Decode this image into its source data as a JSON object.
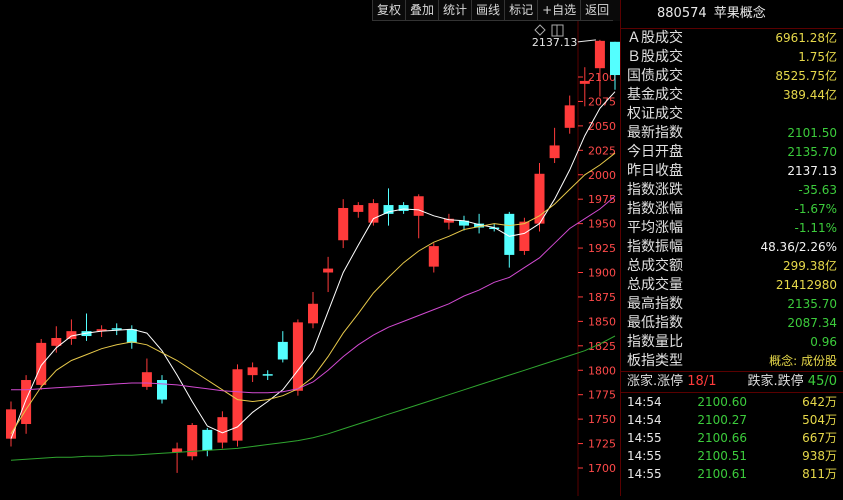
{
  "toolbar": {
    "buttons": [
      "复权",
      "叠加",
      "统计",
      "画线",
      "标记",
      "+自选",
      "返回"
    ]
  },
  "panel": {
    "code": "880574",
    "name": "苹果概念",
    "stats": [
      {
        "label": "Ａ股成交",
        "value": "6961.28亿",
        "color": "yellow"
      },
      {
        "label": "Ｂ股成交",
        "value": "1.75亿",
        "color": "yellow"
      },
      {
        "label": "国债成交",
        "value": "8525.75亿",
        "color": "yellow"
      },
      {
        "label": "基金成交",
        "value": "389.44亿",
        "color": "yellow"
      },
      {
        "label": "权证成交",
        "value": "",
        "color": "yellow"
      },
      {
        "label": "最新指数",
        "value": "2101.50",
        "color": "green"
      },
      {
        "label": "今日开盘",
        "value": "2135.70",
        "color": "green"
      },
      {
        "label": "昨日收盘",
        "value": "2137.13",
        "color": "white"
      },
      {
        "label": "指数涨跌",
        "value": "-35.63",
        "color": "green"
      },
      {
        "label": "指数涨幅",
        "value": "-1.67%",
        "color": "green"
      },
      {
        "label": "平均涨幅",
        "value": "-1.11%",
        "color": "green"
      },
      {
        "label": "指数振幅",
        "value": "48.36/2.26%",
        "color": "white"
      },
      {
        "label": "总成交额",
        "value": "299.38亿",
        "color": "yellow"
      },
      {
        "label": "总成交量",
        "value": "21412980",
        "color": "yellow"
      },
      {
        "label": "最高指数",
        "value": "2135.70",
        "color": "green"
      },
      {
        "label": "最低指数",
        "value": "2087.34",
        "color": "green"
      },
      {
        "label": "指数量比",
        "value": "0.96",
        "color": "green"
      },
      {
        "label": "板指类型",
        "value": "概念: 成份股",
        "color": "yellow"
      }
    ],
    "updown": {
      "up_label": "涨家.涨停",
      "up_value": "18/1",
      "down_label": "跌家.跌停",
      "down_value": "45/0"
    },
    "ticks": [
      {
        "time": "14:54",
        "price": "2100.60",
        "vol": "642万"
      },
      {
        "time": "14:54",
        "price": "2100.27",
        "vol": "504万"
      },
      {
        "time": "14:55",
        "price": "2100.66",
        "vol": "667万"
      },
      {
        "time": "14:55",
        "price": "2100.51",
        "vol": "938万"
      },
      {
        "time": "14:55",
        "price": "2100.61",
        "vol": "811万"
      }
    ]
  },
  "chart_data": {
    "type": "candlestick",
    "y_ticks": [
      1700,
      1725,
      1750,
      1775,
      1800,
      1825,
      1850,
      1875,
      1900,
      1925,
      1950,
      1975,
      2000,
      2025,
      2050,
      2075,
      2100
    ],
    "annotation": "2137.13",
    "candles": [
      {
        "o": 1730,
        "c": 1760,
        "h": 1768,
        "l": 1722
      },
      {
        "o": 1745,
        "c": 1790,
        "h": 1795,
        "l": 1735
      },
      {
        "o": 1785,
        "c": 1828,
        "h": 1832,
        "l": 1780
      },
      {
        "o": 1825,
        "c": 1833,
        "h": 1845,
        "l": 1818
      },
      {
        "o": 1832,
        "c": 1840,
        "h": 1852,
        "l": 1826
      },
      {
        "o": 1840,
        "c": 1835,
        "h": 1858,
        "l": 1830
      },
      {
        "o": 1840,
        "c": 1842,
        "h": 1846,
        "l": 1834
      },
      {
        "o": 1843,
        "c": 1842,
        "h": 1848,
        "l": 1836
      },
      {
        "o": 1842,
        "c": 1828,
        "h": 1846,
        "l": 1822
      },
      {
        "o": 1783,
        "c": 1798,
        "h": 1812,
        "l": 1780
      },
      {
        "o": 1790,
        "c": 1770,
        "h": 1795,
        "l": 1766
      },
      {
        "o": 1716,
        "c": 1720,
        "h": 1726,
        "l": 1695
      },
      {
        "o": 1712,
        "c": 1744,
        "h": 1746,
        "l": 1708
      },
      {
        "o": 1739,
        "c": 1718,
        "h": 1741,
        "l": 1712
      },
      {
        "o": 1726,
        "c": 1752,
        "h": 1758,
        "l": 1720
      },
      {
        "o": 1728,
        "c": 1801,
        "h": 1806,
        "l": 1722
      },
      {
        "o": 1795,
        "c": 1803,
        "h": 1808,
        "l": 1788
      },
      {
        "o": 1796,
        "c": 1795,
        "h": 1800,
        "l": 1790
      },
      {
        "o": 1829,
        "c": 1811,
        "h": 1840,
        "l": 1808
      },
      {
        "o": 1779,
        "c": 1849,
        "h": 1852,
        "l": 1774
      },
      {
        "o": 1848,
        "c": 1868,
        "h": 1880,
        "l": 1843
      },
      {
        "o": 1900,
        "c": 1904,
        "h": 1916,
        "l": 1880
      },
      {
        "o": 1933,
        "c": 1966,
        "h": 1975,
        "l": 1925
      },
      {
        "o": 1962,
        "c": 1969,
        "h": 1972,
        "l": 1956
      },
      {
        "o": 1951,
        "c": 1971,
        "h": 1975,
        "l": 1948
      },
      {
        "o": 1969,
        "c": 1960,
        "h": 1986,
        "l": 1948
      },
      {
        "o": 1969,
        "c": 1963,
        "h": 1972,
        "l": 1960
      },
      {
        "o": 1958,
        "c": 1978,
        "h": 1980,
        "l": 1935
      },
      {
        "o": 1906,
        "c": 1927,
        "h": 1930,
        "l": 1900
      },
      {
        "o": 1951,
        "c": 1955,
        "h": 1960,
        "l": 1944
      },
      {
        "o": 1953,
        "c": 1948,
        "h": 1958,
        "l": 1943
      },
      {
        "o": 1950,
        "c": 1946,
        "h": 1960,
        "l": 1940
      },
      {
        "o": 1946,
        "c": 1945,
        "h": 1950,
        "l": 1942
      },
      {
        "o": 1960,
        "c": 1918,
        "h": 1962,
        "l": 1905
      },
      {
        "o": 1922,
        "c": 1952,
        "h": 1956,
        "l": 1918
      },
      {
        "o": 1950,
        "c": 2001,
        "h": 2012,
        "l": 1942
      },
      {
        "o": 2017,
        "c": 2030,
        "h": 2048,
        "l": 2012
      },
      {
        "o": 2048,
        "c": 2071,
        "h": 2081,
        "l": 2042
      },
      {
        "o": 2093,
        "c": 2096,
        "h": 2110,
        "l": 2070
      },
      {
        "o": 2109,
        "c": 2137,
        "h": 2138,
        "l": 2080
      },
      {
        "o": 2136,
        "c": 2102,
        "h": 2136,
        "l": 2087
      }
    ],
    "ma_series": [
      {
        "color": "#ffffff",
        "values": [
          1730,
          1770,
          1805,
          1823,
          1835,
          1838,
          1840,
          1841,
          1842,
          1838,
          1820,
          1795,
          1768,
          1743,
          1736,
          1742,
          1757,
          1768,
          1780,
          1800,
          1820,
          1860,
          1900,
          1928,
          1955,
          1962,
          1965,
          1964,
          1958,
          1954,
          1953,
          1949,
          1946,
          1937,
          1940,
          1950,
          1975,
          2005,
          2040,
          2068,
          2085
        ]
      },
      {
        "color": "#e6c84a",
        "values": [
          1735,
          1760,
          1783,
          1800,
          1810,
          1816,
          1822,
          1826,
          1829,
          1826,
          1818,
          1810,
          1800,
          1790,
          1780,
          1770,
          1768,
          1770,
          1774,
          1781,
          1793,
          1814,
          1838,
          1858,
          1879,
          1895,
          1910,
          1922,
          1931,
          1937,
          1944,
          1947,
          1950,
          1948,
          1950,
          1958,
          1970,
          1985,
          2000,
          2010,
          2022
        ]
      },
      {
        "color": "#d14ad1",
        "values": [
          1780,
          1780,
          1781,
          1782,
          1783,
          1784,
          1785,
          1786,
          1787,
          1787,
          1786,
          1785,
          1783,
          1781,
          1779,
          1778,
          1777,
          1777,
          1778,
          1781,
          1788,
          1800,
          1814,
          1826,
          1836,
          1844,
          1850,
          1856,
          1862,
          1868,
          1876,
          1882,
          1890,
          1895,
          1905,
          1915,
          1930,
          1945,
          1955,
          1965,
          1978
        ]
      },
      {
        "color": "#2fa52f",
        "values": [
          1708,
          1709,
          1710,
          1711,
          1711,
          1712,
          1712,
          1713,
          1713,
          1714,
          1715,
          1716,
          1717,
          1718,
          1719,
          1720,
          1722,
          1724,
          1726,
          1728,
          1731,
          1735,
          1740,
          1745,
          1750,
          1755,
          1760,
          1765,
          1770,
          1775,
          1780,
          1785,
          1790,
          1795,
          1800,
          1805,
          1810,
          1815,
          1820,
          1827,
          1835
        ]
      }
    ]
  }
}
